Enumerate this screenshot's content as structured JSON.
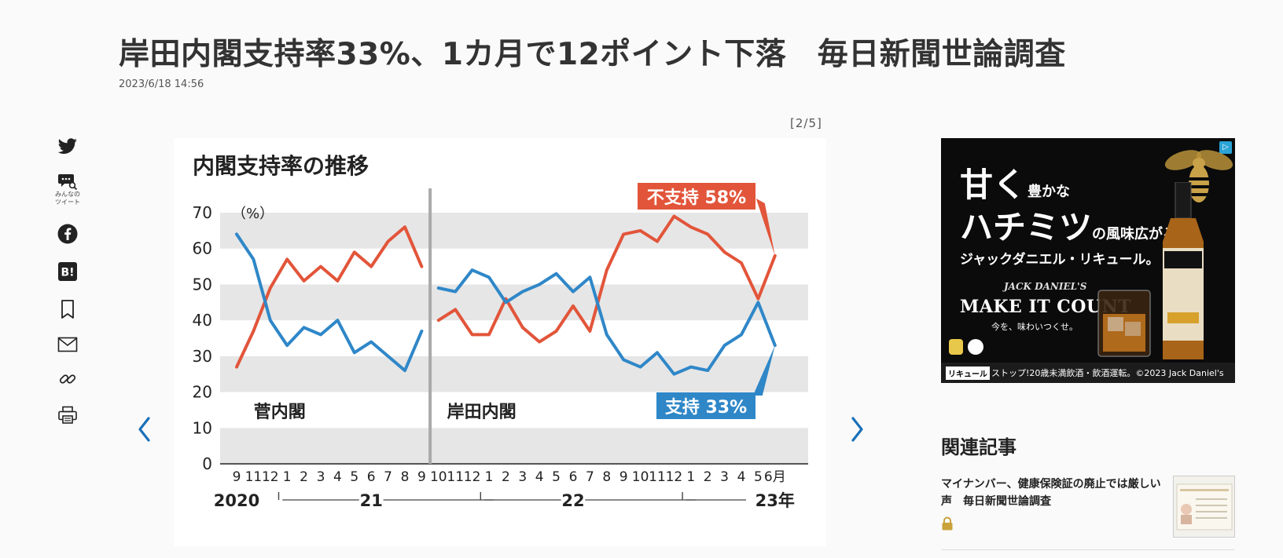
{
  "article": {
    "title": "岸田内閣支持率33%、1カ月で12ポイント下落　毎日新聞世論調査",
    "date": "2023/6/18 14:56"
  },
  "share": {
    "minna_label_1": "みんなの",
    "minna_label_2": "ツイート",
    "icons": [
      "twitter-icon",
      "minna-tweet-icon",
      "facebook-icon",
      "hatena-icon",
      "bookmark-icon",
      "mail-icon",
      "link-icon",
      "print-icon"
    ]
  },
  "gallery": {
    "counter": "[2/5]"
  },
  "colors": {
    "fushiji": "#e2553a",
    "shiji": "#2f87c8",
    "band": "#e6e6e6"
  },
  "chart_data": {
    "type": "line",
    "title": "内閣支持率の推移",
    "unit_label": "（%）",
    "ylim": [
      0,
      70
    ],
    "y_ticks": [
      0,
      10,
      20,
      30,
      40,
      50,
      60,
      70
    ],
    "x_month_labels": [
      "9",
      "11",
      "12",
      "1",
      "2",
      "3",
      "4",
      "5",
      "6",
      "7",
      "8",
      "9",
      "10",
      "11",
      "12",
      "1",
      "2",
      "3",
      "4",
      "5",
      "6",
      "7",
      "8",
      "9",
      "10",
      "11",
      "12",
      "1",
      "2",
      "3",
      "4",
      "5",
      "6月"
    ],
    "x_year_labels": [
      "2020",
      "21",
      "22",
      "23年"
    ],
    "segments": [
      {
        "name": "菅内閣",
        "start": 0,
        "end": 11
      },
      {
        "name": "岸田内閣",
        "start": 12,
        "end": 32
      }
    ],
    "series": [
      {
        "name": "不支持",
        "label": "不支持 58%",
        "values": [
          27,
          37,
          49,
          57,
          51,
          55,
          51,
          59,
          55,
          62,
          66,
          55,
          40,
          43,
          36,
          36,
          46,
          38,
          34,
          37,
          44,
          37,
          54,
          64,
          65,
          62,
          69,
          66,
          64,
          59,
          56,
          46,
          58
        ]
      },
      {
        "name": "支持",
        "label": "支持 33%",
        "values": [
          64,
          57,
          40,
          33,
          38,
          36,
          40,
          31,
          34,
          30,
          26,
          37,
          49,
          48,
          54,
          52,
          45,
          48,
          50,
          53,
          48,
          52,
          36,
          29,
          27,
          31,
          25,
          27,
          26,
          33,
          36,
          45,
          33
        ]
      }
    ]
  },
  "ad": {
    "badge": "▷",
    "line1_big": "甘く",
    "line1_small": "豊かな",
    "line2_big": "ハチミツ",
    "line2_small": "の風味広がる、",
    "line3": "ジャックダニエル・リキュール。",
    "jd_brand": "JACK DANIEL'S",
    "make": "MAKE IT COUNT",
    "tagline": "今を、味わいつくせ。",
    "pill": "リキュール",
    "bottom": "ストップ!20歳未満飲酒・飲酒運転。©2023 Jack Daniel's"
  },
  "related": {
    "title": "関連記事",
    "items": [
      {
        "text": "マイナンバー、健康保険証の廃止では厳しい声　毎日新聞世論調査"
      }
    ]
  }
}
